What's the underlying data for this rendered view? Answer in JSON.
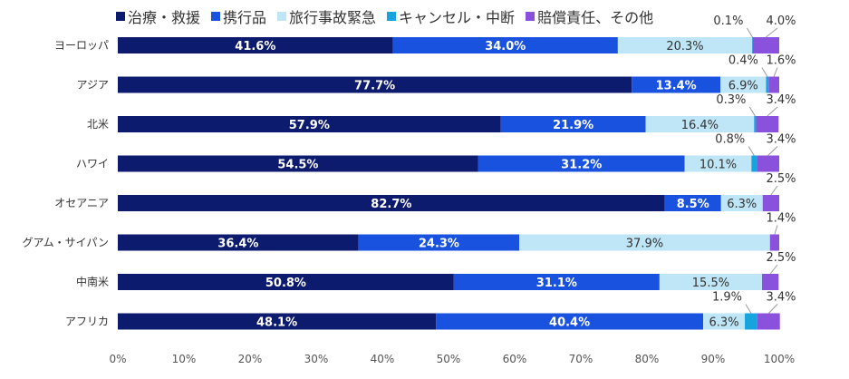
{
  "chart_data": {
    "type": "bar",
    "orientation": "horizontal",
    "stacked": true,
    "categories": [
      "ヨーロッパ",
      "アジア",
      "北米",
      "ハワイ",
      "オセアニア",
      "グアム・サイパン",
      "中南米",
      "アフリカ"
    ],
    "series": [
      {
        "name": "治療・救援",
        "color": "#0d1b6e",
        "values": [
          41.6,
          77.7,
          57.9,
          54.5,
          82.7,
          36.4,
          50.8,
          48.1
        ]
      },
      {
        "name": "携行品",
        "color": "#1a52e0",
        "values": [
          34.0,
          13.4,
          21.9,
          31.2,
          8.5,
          24.3,
          31.1,
          40.4
        ]
      },
      {
        "name": "旅行事故緊急",
        "color": "#bee6f7",
        "values": [
          20.3,
          6.9,
          16.4,
          10.1,
          6.3,
          37.9,
          15.5,
          6.3
        ]
      },
      {
        "name": "キャンセル・中断",
        "color": "#16a3de",
        "values": [
          0.1,
          0.4,
          0.3,
          0.8,
          0,
          0,
          0,
          1.9
        ]
      },
      {
        "name": "賠償責任、その他",
        "color": "#8a52dc",
        "values": [
          4.0,
          1.6,
          3.4,
          3.4,
          2.5,
          1.4,
          2.5,
          3.4
        ]
      }
    ],
    "data_labels": {
      "ヨーロッパ": [
        "41.6%",
        "34.0%",
        "20.3%",
        "0.1%",
        "4.0%"
      ],
      "アジア": [
        "77.7%",
        "13.4%",
        "6.9%",
        "0.4%",
        "1.6%"
      ],
      "北米": [
        "57.9%",
        "21.9%",
        "16.4%",
        "0.3%",
        "3.4%"
      ],
      "ハワイ": [
        "54.5%",
        "31.2%",
        "10.1%",
        "0.8%",
        "3.4%"
      ],
      "オセアニア": [
        "82.7%",
        "8.5%",
        "6.3%",
        "",
        "2.5%"
      ],
      "グアム・サイパン": [
        "36.4%",
        "24.3%",
        "37.9%",
        "",
        "1.4%"
      ],
      "中南米": [
        "50.8%",
        "31.1%",
        "15.5%",
        "",
        "2.5%"
      ],
      "アフリカ": [
        "48.1%",
        "40.4%",
        "6.3%",
        "1.9%",
        "3.4%"
      ]
    },
    "x_ticks": [
      "0%",
      "10%",
      "20%",
      "30%",
      "40%",
      "50%",
      "60%",
      "70%",
      "80%",
      "90%",
      "100%"
    ],
    "xlim": [
      0,
      100
    ],
    "grid": false,
    "legend_position": "top"
  }
}
